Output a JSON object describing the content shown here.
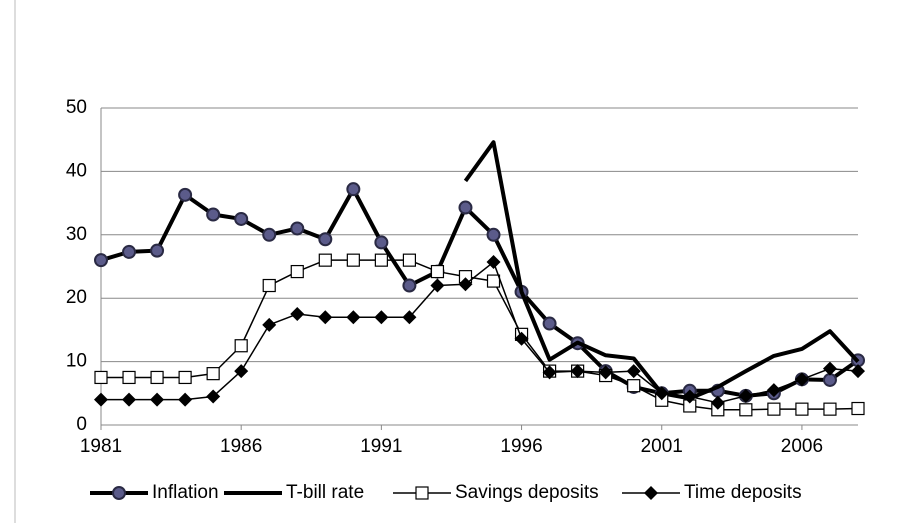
{
  "chart_data": {
    "type": "line",
    "x": [
      1981,
      1982,
      1983,
      1984,
      1985,
      1986,
      1987,
      1988,
      1989,
      1990,
      1991,
      1992,
      1993,
      1994,
      1995,
      1996,
      1997,
      1998,
      1999,
      2000,
      2001,
      2002,
      2003,
      2004,
      2005,
      2006,
      2007,
      2008
    ],
    "xlim": [
      1981,
      2008
    ],
    "xticks": [
      1981,
      1986,
      1991,
      1996,
      2001,
      2006
    ],
    "ylim": [
      0,
      50
    ],
    "yticks": [
      0,
      10,
      20,
      30,
      40,
      50
    ],
    "grid": true,
    "legend": "bottom",
    "series": [
      {
        "name": "Inflation",
        "color": "#000000",
        "marker": "circle",
        "marker_color": "#5b5b8a",
        "width": 4,
        "values": [
          26,
          27.3,
          27.5,
          36.3,
          33.2,
          32.5,
          30,
          31,
          29.3,
          37.2,
          28.8,
          22,
          24.2,
          34.3,
          30,
          21,
          16,
          12.9,
          8.5,
          6,
          5,
          5.4,
          5.4,
          4.6,
          5,
          7.2,
          7.1,
          10.2
        ]
      },
      {
        "name": "T-bill rate",
        "color": "#000000",
        "marker": "none",
        "width": 4,
        "values": [
          null,
          null,
          null,
          null,
          null,
          null,
          null,
          null,
          null,
          null,
          null,
          null,
          null,
          38.5,
          44.6,
          21,
          10.3,
          13,
          11,
          10.5,
          5,
          4.2,
          6,
          8.5,
          10.9,
          12,
          14.8,
          10
        ]
      },
      {
        "name": "Savings deposits",
        "color": "#000000",
        "marker": "square",
        "marker_color": "#ffffff",
        "width": 1.5,
        "values": [
          7.5,
          7.5,
          7.5,
          7.5,
          8.1,
          12.5,
          22,
          24.2,
          26,
          26,
          26,
          26,
          24.2,
          23.4,
          22.7,
          14.3,
          8.5,
          8.5,
          7.8,
          6.2,
          3.9,
          3,
          2.4,
          2.4,
          2.5,
          2.5,
          2.5,
          2.6
        ]
      },
      {
        "name": "Time deposits",
        "color": "#000000",
        "marker": "diamond",
        "marker_color": "#000000",
        "width": 1.5,
        "values": [
          4,
          4,
          4,
          4,
          4.5,
          8.5,
          15.8,
          17.5,
          17,
          17,
          17,
          17,
          22,
          22.2,
          25.7,
          13.6,
          8.3,
          8.5,
          8.3,
          8.5,
          5,
          4.5,
          3.5,
          4.6,
          5.5,
          7.2,
          8.9,
          8.5
        ]
      }
    ]
  }
}
